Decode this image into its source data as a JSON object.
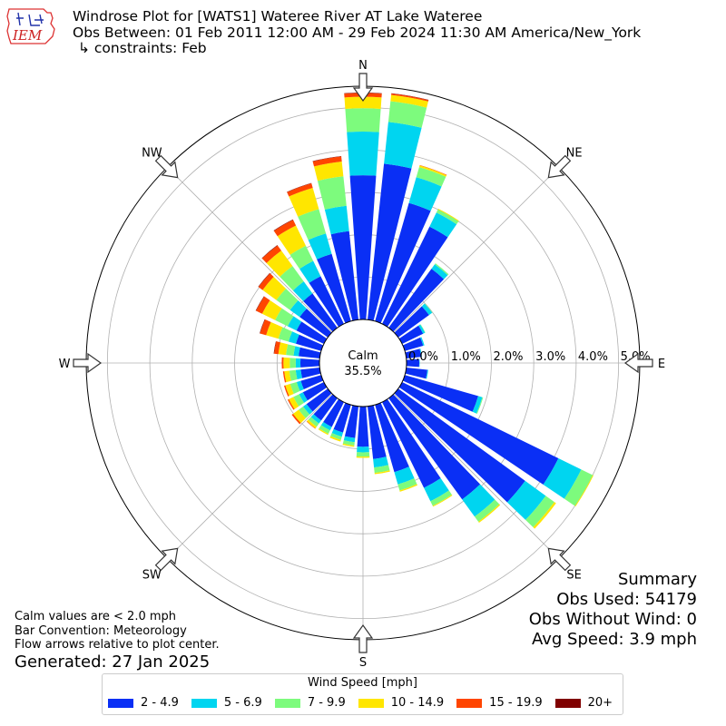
{
  "header": {
    "title": "Windrose Plot for [WATS1] Wateree River  AT Lake Wateree",
    "obs_between": "Obs Between: 01 Feb 2011 12:00 AM - 29 Feb 2024 11:30 AM America/New_York",
    "constraints": "↳ constraints: Feb",
    "logo_text": "IEM"
  },
  "footer": {
    "calm_note": "Calm values are < 2.0 mph",
    "bar_convention": "Bar Convention: Meteorology",
    "flow_note": "Flow arrows relative to plot center.",
    "generated": "Generated: 27 Jan 2025"
  },
  "summary": {
    "heading": "Summary",
    "obs_used": "Obs Used: 54179",
    "obs_without_wind": "Obs Without Wind: 0",
    "avg_speed": "Avg Speed: 3.9 mph"
  },
  "chart_data": {
    "type": "windrose",
    "calm_label": "Calm",
    "calm_value": "35.5%",
    "calm_percent": 35.5,
    "radial_ticks": [
      "0.0%",
      "1.0%",
      "2.0%",
      "3.0%",
      "4.0%",
      "5.0%"
    ],
    "radial_range": [
      0,
      5.5
    ],
    "grid": true,
    "compass_labels": {
      "N": "N",
      "NE": "NE",
      "E": "E",
      "SE": "SE",
      "S": "S",
      "SW": "SW",
      "W": "W",
      "NW": "NW"
    },
    "legend_title": "Wind Speed [mph]",
    "speed_bins": [
      "2 - 4.9",
      "5 - 6.9",
      "7 - 9.9",
      "10 - 14.9",
      "15 - 19.9",
      "20+"
    ],
    "colors": [
      "#0a2ff5",
      "#00d5f0",
      "#7dfb7d",
      "#ffe600",
      "#ff4500",
      "#800000"
    ],
    "directions_deg": [
      0,
      10,
      20,
      30,
      40,
      50,
      60,
      70,
      80,
      90,
      100,
      110,
      120,
      130,
      140,
      150,
      160,
      170,
      180,
      190,
      200,
      210,
      220,
      230,
      240,
      250,
      260,
      270,
      280,
      290,
      300,
      310,
      320,
      330,
      340,
      350
    ],
    "cumulative_percent": [
      [
        3.4,
        4.43,
        4.98,
        5.25,
        5.34,
        5.35
      ],
      [
        3.7,
        4.69,
        5.18,
        5.33,
        5.36,
        5.37
      ],
      [
        2.9,
        3.53,
        3.78,
        3.82,
        3.83,
        3.83
      ],
      [
        2.55,
        2.92,
        3.0,
        3.02,
        3.02,
        3.02
      ],
      [
        1.72,
        1.85,
        1.88,
        1.88,
        1.88,
        1.88
      ],
      [
        0.9,
        0.99,
        1.0,
        1.0,
        1.0,
        1.0
      ],
      [
        0.55,
        0.6,
        0.61,
        0.61,
        0.61,
        0.61
      ],
      [
        0.45,
        0.48,
        0.48,
        0.48,
        0.48,
        0.48
      ],
      [
        0.35,
        0.37,
        0.37,
        0.37,
        0.37,
        0.37
      ],
      [
        0.3,
        0.31,
        0.31,
        0.31,
        0.31,
        0.31
      ],
      [
        0.5,
        0.52,
        0.52,
        0.52,
        0.52,
        0.52
      ],
      [
        1.8,
        1.9,
        1.92,
        1.92,
        1.92,
        1.92
      ],
      [
        4.1,
        4.7,
        5.0,
        5.02,
        5.02,
        5.02
      ],
      [
        3.7,
        4.3,
        4.55,
        4.6,
        4.6,
        4.6
      ],
      [
        2.95,
        3.45,
        3.6,
        3.63,
        3.63,
        3.63
      ],
      [
        2.25,
        2.6,
        2.72,
        2.74,
        2.74,
        2.74
      ],
      [
        1.65,
        1.95,
        2.1,
        2.13,
        2.13,
        2.13
      ],
      [
        1.25,
        1.45,
        1.58,
        1.61,
        1.61,
        1.61
      ],
      [
        0.95,
        1.08,
        1.18,
        1.21,
        1.21,
        1.21
      ],
      [
        0.75,
        0.85,
        0.93,
        0.96,
        0.96,
        0.96
      ],
      [
        0.68,
        0.78,
        0.86,
        0.9,
        0.9,
        0.9
      ],
      [
        0.65,
        0.74,
        0.83,
        0.86,
        0.86,
        0.86
      ],
      [
        0.65,
        0.74,
        0.83,
        0.88,
        0.89,
        0.89
      ],
      [
        0.62,
        0.72,
        0.85,
        1.01,
        1.05,
        1.05
      ],
      [
        0.55,
        0.65,
        0.8,
        0.92,
        0.95,
        0.95
      ],
      [
        0.5,
        0.6,
        0.76,
        0.88,
        0.91,
        0.91
      ],
      [
        0.45,
        0.57,
        0.72,
        0.84,
        0.87,
        0.87
      ],
      [
        0.45,
        0.56,
        0.7,
        0.85,
        0.89,
        0.89
      ],
      [
        0.5,
        0.62,
        0.8,
        0.98,
        1.08,
        1.09
      ],
      [
        0.62,
        0.8,
        1.05,
        1.35,
        1.5,
        1.51
      ],
      [
        0.72,
        0.95,
        1.28,
        1.62,
        1.78,
        1.79
      ],
      [
        0.82,
        1.1,
        1.5,
        1.9,
        2.02,
        2.03
      ],
      [
        1.0,
        1.35,
        1.8,
        2.25,
        2.4,
        2.41
      ],
      [
        1.25,
        1.65,
        2.05,
        2.58,
        2.73,
        2.74
      ],
      [
        1.65,
        2.15,
        2.75,
        3.27,
        3.38,
        3.39
      ],
      [
        2.1,
        2.7,
        3.4,
        3.75,
        3.87,
        3.88
      ]
    ]
  }
}
